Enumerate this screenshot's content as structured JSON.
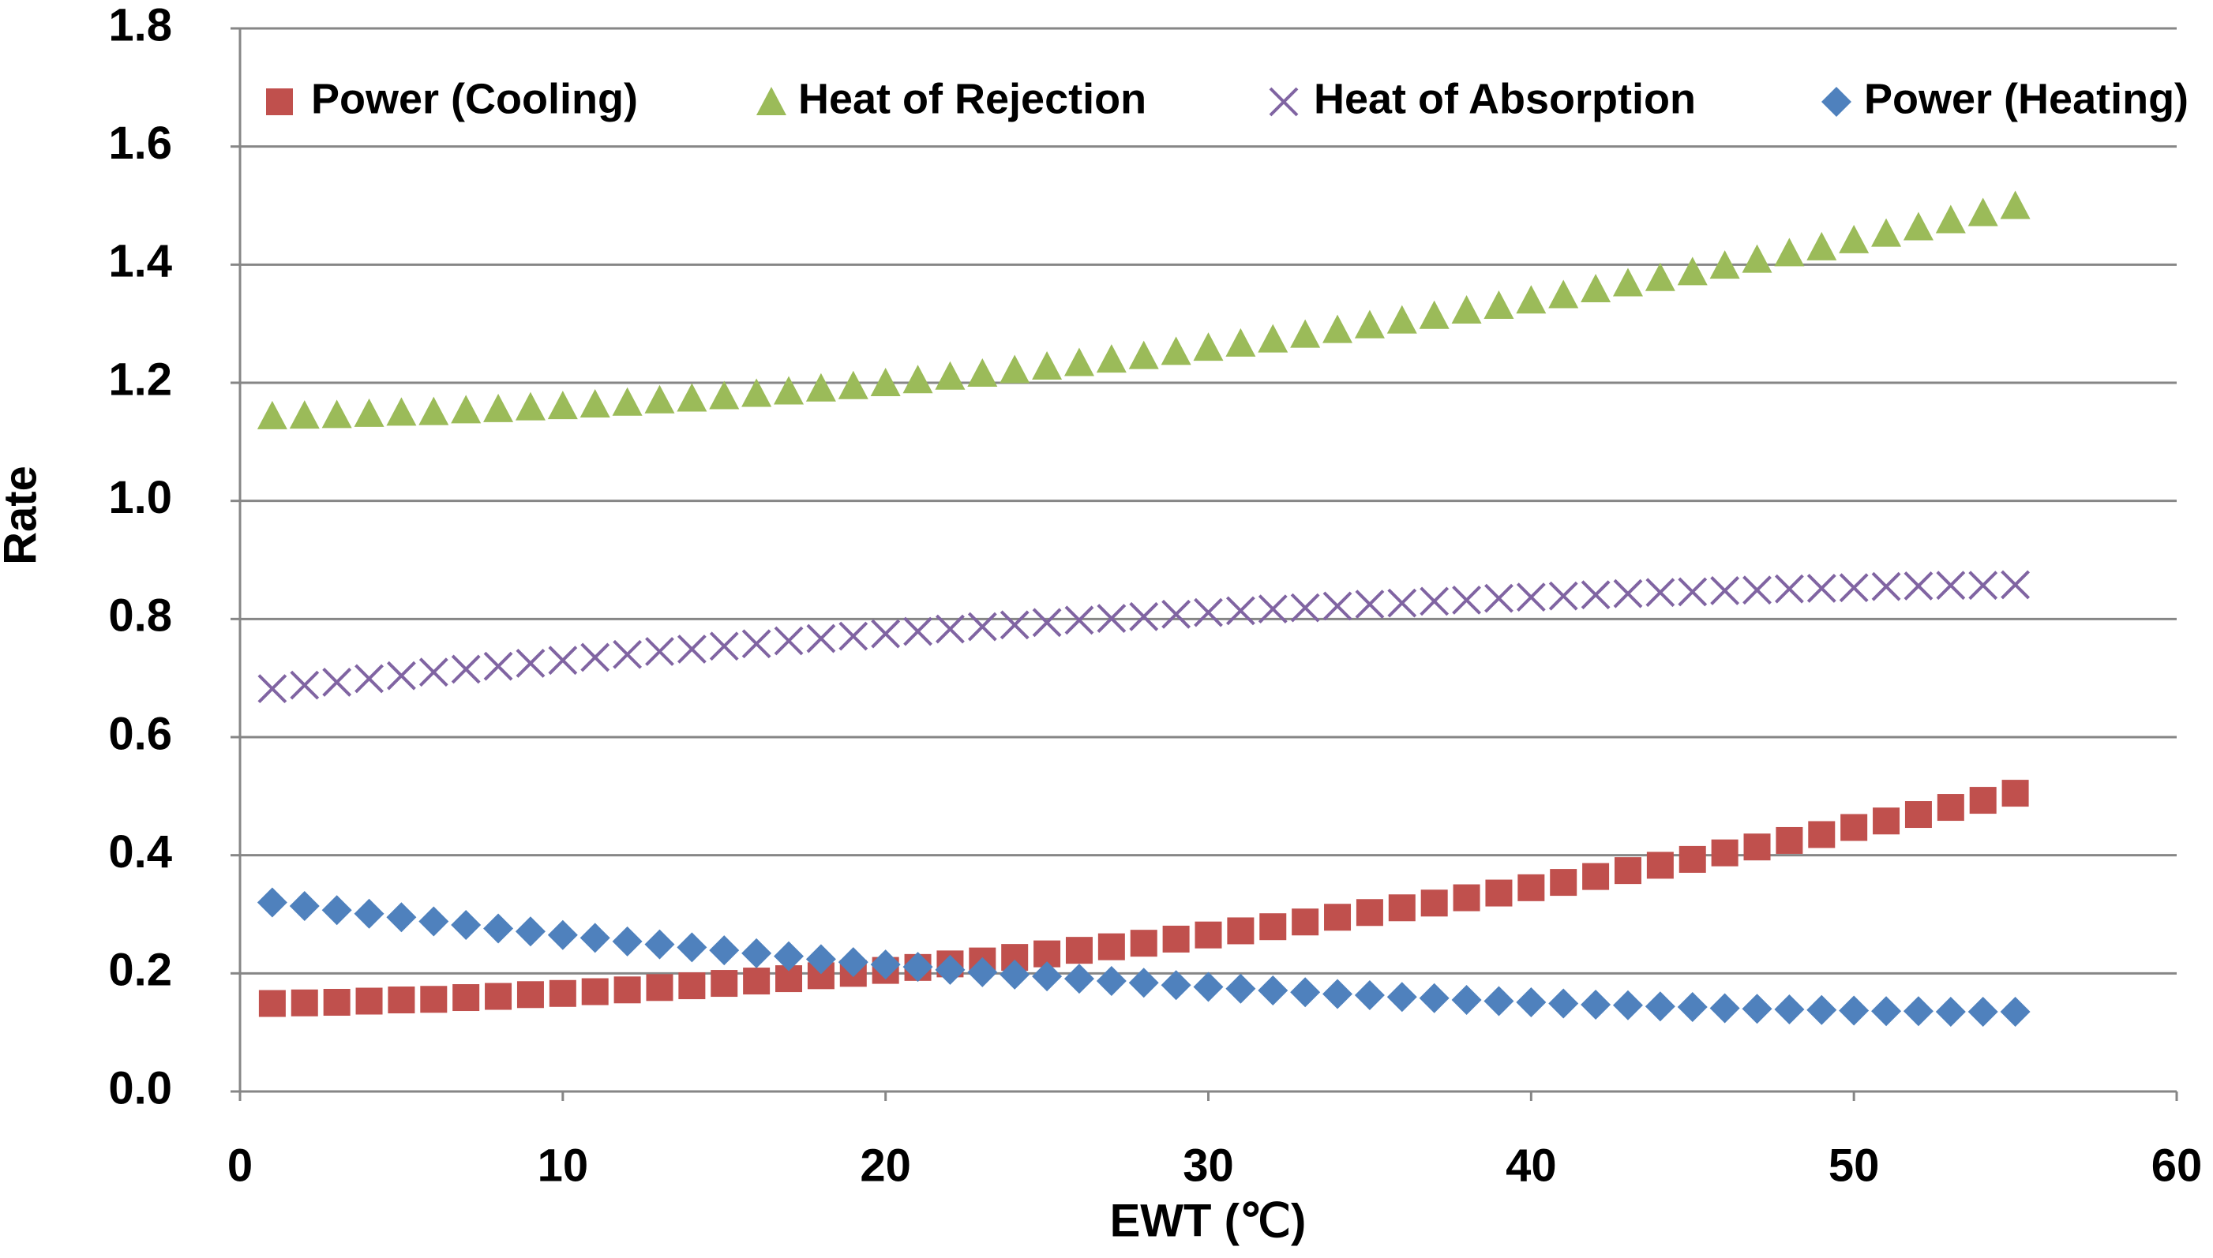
{
  "chart_data": {
    "type": "scatter",
    "x_label": "EWT (℃)",
    "y_label": "Rate",
    "x": [
      1,
      2,
      3,
      4,
      5,
      6,
      7,
      8,
      9,
      10,
      11,
      12,
      13,
      14,
      15,
      16,
      17,
      18,
      19,
      20,
      21,
      22,
      23,
      24,
      25,
      26,
      27,
      28,
      29,
      30,
      31,
      32,
      33,
      34,
      35,
      36,
      37,
      38,
      39,
      40,
      41,
      42,
      43,
      44,
      45,
      46,
      47,
      48,
      49,
      50,
      51,
      52,
      53,
      54,
      55
    ],
    "series": [
      {
        "name": "Power (Cooling)",
        "color": "#c0504d",
        "marker": "square",
        "values": [
          0.149,
          0.15,
          0.151,
          0.153,
          0.155,
          0.156,
          0.159,
          0.161,
          0.164,
          0.166,
          0.169,
          0.172,
          0.176,
          0.179,
          0.183,
          0.187,
          0.191,
          0.196,
          0.2,
          0.205,
          0.21,
          0.216,
          0.221,
          0.227,
          0.233,
          0.239,
          0.245,
          0.251,
          0.258,
          0.265,
          0.272,
          0.279,
          0.287,
          0.295,
          0.303,
          0.311,
          0.319,
          0.328,
          0.336,
          0.345,
          0.354,
          0.364,
          0.374,
          0.383,
          0.393,
          0.404,
          0.414,
          0.425,
          0.435,
          0.447,
          0.458,
          0.469,
          0.481,
          0.493,
          0.505
        ]
      },
      {
        "name": "Heat of Rejection",
        "color": "#9bbb59",
        "marker": "triangle",
        "values": [
          1.144,
          1.145,
          1.146,
          1.148,
          1.15,
          1.151,
          1.154,
          1.156,
          1.159,
          1.161,
          1.164,
          1.167,
          1.171,
          1.174,
          1.178,
          1.182,
          1.186,
          1.191,
          1.195,
          1.2,
          1.205,
          1.211,
          1.216,
          1.222,
          1.228,
          1.234,
          1.24,
          1.246,
          1.253,
          1.26,
          1.267,
          1.274,
          1.282,
          1.29,
          1.298,
          1.306,
          1.314,
          1.323,
          1.331,
          1.34,
          1.349,
          1.359,
          1.369,
          1.378,
          1.388,
          1.399,
          1.409,
          1.42,
          1.43,
          1.442,
          1.453,
          1.464,
          1.476,
          1.488,
          1.5
        ]
      },
      {
        "name": "Heat of Absorption",
        "color": "#8064a2",
        "marker": "x",
        "values": [
          0.682,
          0.688,
          0.693,
          0.699,
          0.704,
          0.71,
          0.715,
          0.72,
          0.725,
          0.73,
          0.735,
          0.74,
          0.745,
          0.749,
          0.754,
          0.758,
          0.763,
          0.767,
          0.771,
          0.775,
          0.779,
          0.783,
          0.787,
          0.79,
          0.794,
          0.798,
          0.801,
          0.804,
          0.808,
          0.811,
          0.814,
          0.817,
          0.819,
          0.822,
          0.825,
          0.827,
          0.83,
          0.832,
          0.835,
          0.837,
          0.839,
          0.841,
          0.843,
          0.845,
          0.846,
          0.848,
          0.849,
          0.851,
          0.852,
          0.853,
          0.855,
          0.856,
          0.857,
          0.857,
          0.858
        ]
      },
      {
        "name": "Power (Heating)",
        "color": "#4f81bd",
        "marker": "diamond",
        "values": [
          0.32,
          0.314,
          0.307,
          0.301,
          0.295,
          0.288,
          0.282,
          0.276,
          0.271,
          0.265,
          0.26,
          0.254,
          0.249,
          0.244,
          0.239,
          0.234,
          0.229,
          0.224,
          0.219,
          0.215,
          0.211,
          0.206,
          0.202,
          0.198,
          0.195,
          0.191,
          0.187,
          0.184,
          0.18,
          0.177,
          0.174,
          0.171,
          0.168,
          0.165,
          0.163,
          0.16,
          0.158,
          0.155,
          0.153,
          0.151,
          0.149,
          0.147,
          0.146,
          0.144,
          0.143,
          0.141,
          0.14,
          0.139,
          0.138,
          0.137,
          0.136,
          0.136,
          0.135,
          0.135,
          0.135
        ]
      }
    ],
    "xlim": [
      0,
      60
    ],
    "xticks": [
      0,
      10,
      20,
      30,
      40,
      50,
      60
    ],
    "ylim": [
      0,
      1.8
    ],
    "yticks": [
      {
        "value": 0,
        "label": "0.0"
      },
      0.2,
      0.4,
      0.6,
      0.8,
      {
        "value": 1,
        "label": "1.0"
      },
      1.2,
      1.4,
      1.6,
      1.8
    ],
    "grid": true,
    "legend": "top"
  }
}
